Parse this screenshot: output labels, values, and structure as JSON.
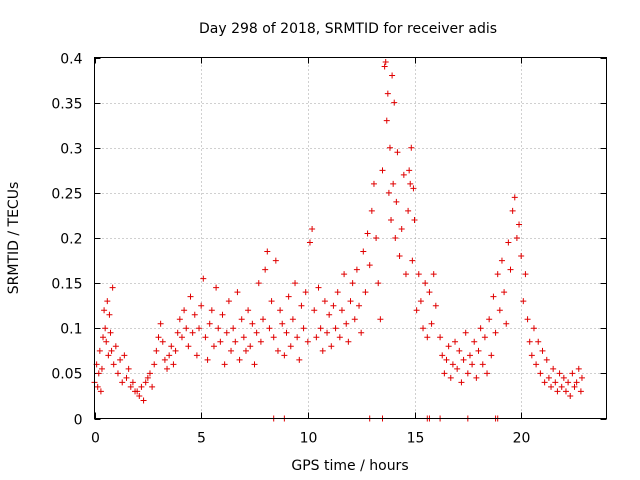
{
  "chart_data": {
    "type": "scatter",
    "title": "Day 298 of 2018, SRMTID for receiver adis",
    "xlabel": "GPS time / hours",
    "ylabel": "SRMTID / TECUs",
    "xlim": [
      0,
      24
    ],
    "ylim": [
      0,
      0.4
    ],
    "x_ticks": [
      0,
      5,
      10,
      15,
      20
    ],
    "x_tick_labels": [
      "0",
      "5",
      "10",
      "15",
      "20"
    ],
    "y_ticks": [
      0,
      0.05,
      0.1,
      0.15,
      0.2,
      0.25,
      0.3,
      0.35,
      0.4
    ],
    "y_tick_labels": [
      "0",
      "0.05",
      "0.1",
      "0.15",
      "0.2",
      "0.25",
      "0.3",
      "0.35",
      "0.4"
    ],
    "grid": true,
    "marker": "plus",
    "series_color": "#e00000",
    "series": [
      {
        "name": "SRMTID",
        "points": [
          [
            0.0,
            0.04
          ],
          [
            0.1,
            0.06
          ],
          [
            0.15,
            0.035
          ],
          [
            0.2,
            0.05
          ],
          [
            0.25,
            0.075
          ],
          [
            0.3,
            0.03
          ],
          [
            0.35,
            0.055
          ],
          [
            0.4,
            0.09
          ],
          [
            0.45,
            0.12
          ],
          [
            0.5,
            0.1
          ],
          [
            0.55,
            0.085
          ],
          [
            0.6,
            0.13
          ],
          [
            0.65,
            0.07
          ],
          [
            0.7,
            0.115
          ],
          [
            0.75,
            0.095
          ],
          [
            0.8,
            0.075
          ],
          [
            0.85,
            0.145
          ],
          [
            0.9,
            0.06
          ],
          [
            1.0,
            0.08
          ],
          [
            1.1,
            0.05
          ],
          [
            1.2,
            0.065
          ],
          [
            1.3,
            0.04
          ],
          [
            1.4,
            0.07
          ],
          [
            1.5,
            0.045
          ],
          [
            1.6,
            0.055
          ],
          [
            1.7,
            0.035
          ],
          [
            1.8,
            0.04
          ],
          [
            1.9,
            0.03
          ],
          [
            2.0,
            0.03
          ],
          [
            2.1,
            0.025
          ],
          [
            2.2,
            0.035
          ],
          [
            2.3,
            0.02
          ],
          [
            2.4,
            0.04
          ],
          [
            2.5,
            0.045
          ],
          [
            2.6,
            0.05
          ],
          [
            2.7,
            0.035
          ],
          [
            2.8,
            0.06
          ],
          [
            2.9,
            0.075
          ],
          [
            3.0,
            0.09
          ],
          [
            3.1,
            0.105
          ],
          [
            3.2,
            0.085
          ],
          [
            3.3,
            0.065
          ],
          [
            3.4,
            0.055
          ],
          [
            3.5,
            0.07
          ],
          [
            3.6,
            0.08
          ],
          [
            3.7,
            0.06
          ],
          [
            3.8,
            0.075
          ],
          [
            3.9,
            0.095
          ],
          [
            4.0,
            0.11
          ],
          [
            4.1,
            0.09
          ],
          [
            4.2,
            0.12
          ],
          [
            4.3,
            0.1
          ],
          [
            4.4,
            0.08
          ],
          [
            4.5,
            0.135
          ],
          [
            4.6,
            0.095
          ],
          [
            4.7,
            0.115
          ],
          [
            4.8,
            0.07
          ],
          [
            4.9,
            0.1
          ],
          [
            5.0,
            0.125
          ],
          [
            5.1,
            0.155
          ],
          [
            5.2,
            0.09
          ],
          [
            5.3,
            0.065
          ],
          [
            5.4,
            0.105
          ],
          [
            5.5,
            0.12
          ],
          [
            5.6,
            0.08
          ],
          [
            5.7,
            0.145
          ],
          [
            5.8,
            0.1
          ],
          [
            5.9,
            0.085
          ],
          [
            6.0,
            0.115
          ],
          [
            6.1,
            0.06
          ],
          [
            6.2,
            0.095
          ],
          [
            6.3,
            0.13
          ],
          [
            6.4,
            0.075
          ],
          [
            6.5,
            0.1
          ],
          [
            6.6,
            0.085
          ],
          [
            6.7,
            0.14
          ],
          [
            6.8,
            0.065
          ],
          [
            6.9,
            0.11
          ],
          [
            7.0,
            0.09
          ],
          [
            7.1,
            0.075
          ],
          [
            7.2,
            0.12
          ],
          [
            7.3,
            0.08
          ],
          [
            7.4,
            0.105
          ],
          [
            7.5,
            0.06
          ],
          [
            7.6,
            0.095
          ],
          [
            7.7,
            0.15
          ],
          [
            7.8,
            0.085
          ],
          [
            7.9,
            0.11
          ],
          [
            8.0,
            0.165
          ],
          [
            8.1,
            0.185
          ],
          [
            8.2,
            0.1
          ],
          [
            8.3,
            0.13
          ],
          [
            8.4,
            0.09
          ],
          [
            8.5,
            0.175
          ],
          [
            8.6,
            0.075
          ],
          [
            8.7,
            0.12
          ],
          [
            8.8,
            0.105
          ],
          [
            8.9,
            0.07
          ],
          [
            9.0,
            0.095
          ],
          [
            9.1,
            0.135
          ],
          [
            9.2,
            0.08
          ],
          [
            9.3,
            0.11
          ],
          [
            9.4,
            0.15
          ],
          [
            9.5,
            0.09
          ],
          [
            9.6,
            0.065
          ],
          [
            9.7,
            0.125
          ],
          [
            9.8,
            0.1
          ],
          [
            9.9,
            0.14
          ],
          [
            10.0,
            0.085
          ],
          [
            10.1,
            0.195
          ],
          [
            10.2,
            0.21
          ],
          [
            10.3,
            0.12
          ],
          [
            10.4,
            0.09
          ],
          [
            10.5,
            0.145
          ],
          [
            10.6,
            0.1
          ],
          [
            10.7,
            0.075
          ],
          [
            10.8,
            0.13
          ],
          [
            10.9,
            0.095
          ],
          [
            11.0,
            0.115
          ],
          [
            11.1,
            0.08
          ],
          [
            11.2,
            0.125
          ],
          [
            11.3,
            0.1
          ],
          [
            11.4,
            0.14
          ],
          [
            11.5,
            0.09
          ],
          [
            11.6,
            0.12
          ],
          [
            11.7,
            0.16
          ],
          [
            11.8,
            0.105
          ],
          [
            11.9,
            0.085
          ],
          [
            12.0,
            0.13
          ],
          [
            12.1,
            0.15
          ],
          [
            12.2,
            0.11
          ],
          [
            12.3,
            0.165
          ],
          [
            12.4,
            0.125
          ],
          [
            12.5,
            0.095
          ],
          [
            12.6,
            0.185
          ],
          [
            12.7,
            0.14
          ],
          [
            12.8,
            0.205
          ],
          [
            12.9,
            0.17
          ],
          [
            13.0,
            0.23
          ],
          [
            13.1,
            0.26
          ],
          [
            13.2,
            0.2
          ],
          [
            13.3,
            0.15
          ],
          [
            13.4,
            0.11
          ],
          [
            13.5,
            0.275
          ],
          [
            13.6,
            0.39
          ],
          [
            13.65,
            0.395
          ],
          [
            13.7,
            0.33
          ],
          [
            13.75,
            0.36
          ],
          [
            13.8,
            0.25
          ],
          [
            13.85,
            0.3
          ],
          [
            13.9,
            0.22
          ],
          [
            13.95,
            0.38
          ],
          [
            14.0,
            0.26
          ],
          [
            14.05,
            0.35
          ],
          [
            14.1,
            0.2
          ],
          [
            14.15,
            0.24
          ],
          [
            14.2,
            0.295
          ],
          [
            14.3,
            0.18
          ],
          [
            14.4,
            0.21
          ],
          [
            14.5,
            0.27
          ],
          [
            14.6,
            0.16
          ],
          [
            14.7,
            0.23
          ],
          [
            14.75,
            0.275
          ],
          [
            14.8,
            0.26
          ],
          [
            14.85,
            0.3
          ],
          [
            14.9,
            0.175
          ],
          [
            14.95,
            0.255
          ],
          [
            15.0,
            0.22
          ],
          [
            15.1,
            0.12
          ],
          [
            15.2,
            0.16
          ],
          [
            15.3,
            0.13
          ],
          [
            15.4,
            0.1
          ],
          [
            15.5,
            0.15
          ],
          [
            15.6,
            0.09
          ],
          [
            15.7,
            0.14
          ],
          [
            15.8,
            0.105
          ],
          [
            15.9,
            0.16
          ],
          [
            16.0,
            0.125
          ],
          [
            16.2,
            0.09
          ],
          [
            16.3,
            0.07
          ],
          [
            16.4,
            0.05
          ],
          [
            16.5,
            0.065
          ],
          [
            16.6,
            0.08
          ],
          [
            16.7,
            0.045
          ],
          [
            16.8,
            0.06
          ],
          [
            16.9,
            0.085
          ],
          [
            17.0,
            0.055
          ],
          [
            17.1,
            0.075
          ],
          [
            17.2,
            0.04
          ],
          [
            17.3,
            0.065
          ],
          [
            17.4,
            0.095
          ],
          [
            17.5,
            0.05
          ],
          [
            17.6,
            0.07
          ],
          [
            17.7,
            0.06
          ],
          [
            17.8,
            0.085
          ],
          [
            17.9,
            0.045
          ],
          [
            18.0,
            0.075
          ],
          [
            18.1,
            0.1
          ],
          [
            18.2,
            0.06
          ],
          [
            18.3,
            0.09
          ],
          [
            18.4,
            0.05
          ],
          [
            18.5,
            0.11
          ],
          [
            18.6,
            0.07
          ],
          [
            18.7,
            0.135
          ],
          [
            18.8,
            0.095
          ],
          [
            18.9,
            0.16
          ],
          [
            19.0,
            0.12
          ],
          [
            19.1,
            0.175
          ],
          [
            19.2,
            0.14
          ],
          [
            19.3,
            0.105
          ],
          [
            19.4,
            0.195
          ],
          [
            19.5,
            0.165
          ],
          [
            19.6,
            0.23
          ],
          [
            19.7,
            0.245
          ],
          [
            19.8,
            0.2
          ],
          [
            19.9,
            0.215
          ],
          [
            20.0,
            0.18
          ],
          [
            20.1,
            0.13
          ],
          [
            20.2,
            0.16
          ],
          [
            20.3,
            0.11
          ],
          [
            20.4,
            0.085
          ],
          [
            20.5,
            0.07
          ],
          [
            20.6,
            0.1
          ],
          [
            20.7,
            0.06
          ],
          [
            20.8,
            0.085
          ],
          [
            20.9,
            0.05
          ],
          [
            21.0,
            0.075
          ],
          [
            21.1,
            0.04
          ],
          [
            21.2,
            0.065
          ],
          [
            21.3,
            0.045
          ],
          [
            21.4,
            0.035
          ],
          [
            21.5,
            0.055
          ],
          [
            21.6,
            0.04
          ],
          [
            21.7,
            0.03
          ],
          [
            21.8,
            0.05
          ],
          [
            21.9,
            0.035
          ],
          [
            22.0,
            0.045
          ],
          [
            22.1,
            0.03
          ],
          [
            22.2,
            0.04
          ],
          [
            22.3,
            0.025
          ],
          [
            22.4,
            0.05
          ],
          [
            22.5,
            0.035
          ],
          [
            22.6,
            0.04
          ],
          [
            22.7,
            0.055
          ],
          [
            22.8,
            0.03
          ],
          [
            22.85,
            0.045
          ]
        ]
      }
    ],
    "baseline_markers_x": [
      8.4,
      8.9,
      12.9,
      13.5,
      15.6,
      15.7,
      16.2,
      17.5,
      18.8,
      18.9
    ]
  }
}
